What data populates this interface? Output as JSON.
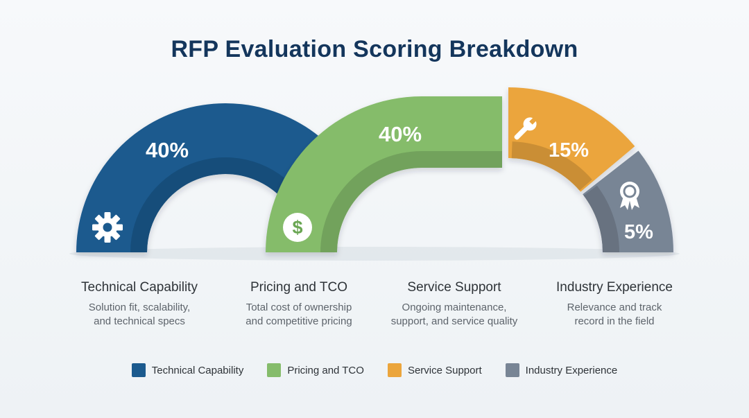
{
  "title": "RFP Evaluation Scoring Breakdown",
  "chart_data": {
    "type": "pie",
    "shape": "semi-donut segments",
    "title": "RFP Evaluation Scoring Breakdown",
    "categories": [
      "Technical Capability",
      "Pricing and TCO",
      "Service Support",
      "Industry Experience"
    ],
    "values": [
      40,
      40,
      15,
      5
    ],
    "value_labels": [
      "40%",
      "40%",
      "15%",
      "5%"
    ],
    "colors": [
      "#1b5a8e",
      "#85bc6b",
      "#eba53c",
      "#788595"
    ],
    "icons": [
      "gear-icon",
      "dollar-icon",
      "wrench-icon",
      "award-ribbon-icon"
    ],
    "legend_position": "bottom-center"
  },
  "categories": [
    {
      "name": "Technical Capability",
      "desc_line1": "Solution fit, scalability,",
      "desc_line2": "and technical specs"
    },
    {
      "name": "Pricing and TCO",
      "desc_line1": "Total cost of ownership",
      "desc_line2": "and competitive pricing"
    },
    {
      "name": "Service Support",
      "desc_line1": "Ongoing maintenance,",
      "desc_line2": "support, and service quality"
    },
    {
      "name": "Industry Experience",
      "desc_line1": "Relevance and track",
      "desc_line2": "record in the field"
    }
  ],
  "legend": [
    {
      "label": "Technical Capability",
      "color": "#1b5a8e"
    },
    {
      "label": "Pricing and TCO",
      "color": "#85bc6b"
    },
    {
      "label": "Service Support",
      "color": "#eba53c"
    },
    {
      "label": "Industry Experience",
      "color": "#788595"
    }
  ]
}
